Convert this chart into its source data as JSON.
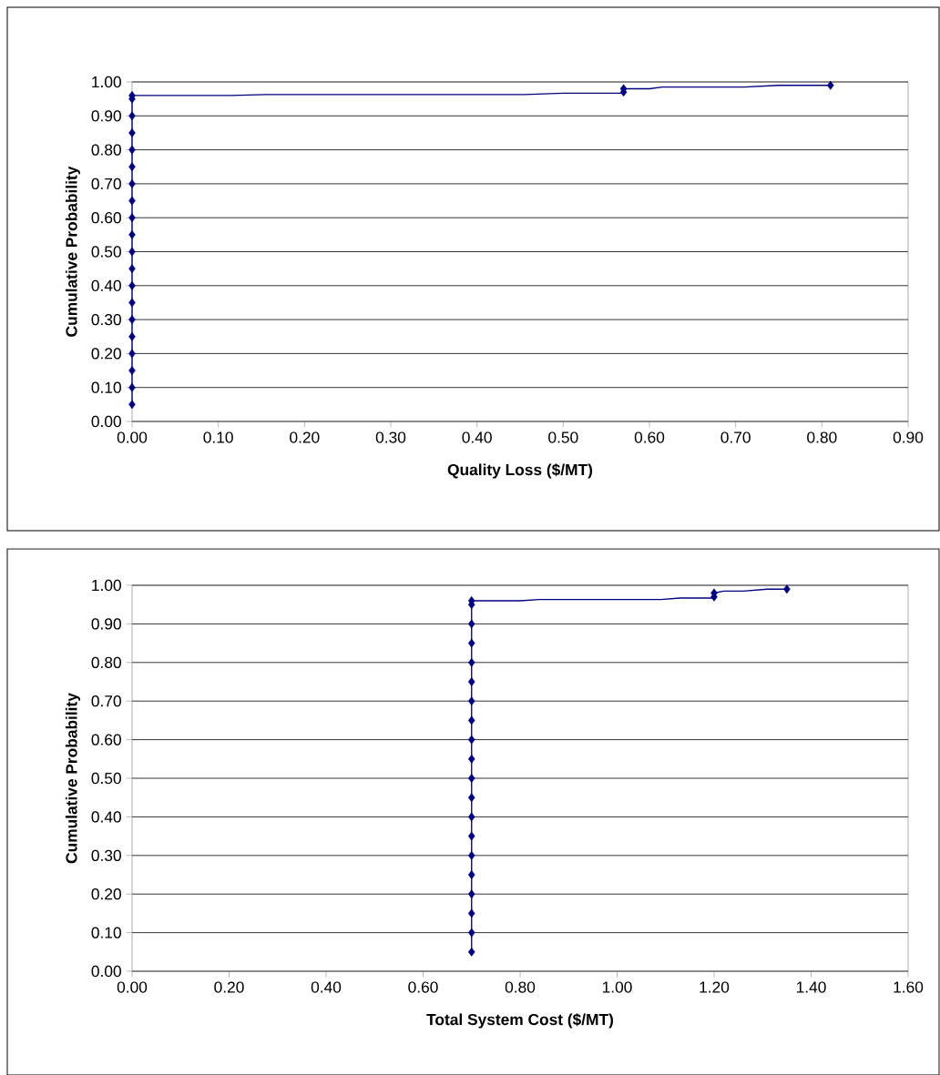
{
  "chart_data": [
    {
      "type": "line",
      "xlabel": "Quality Loss ($/MT)",
      "ylabel": "Cumulative Probability",
      "xlim": [
        0,
        0.9
      ],
      "xticks": [
        {
          "value": 0,
          "label": "0.00"
        },
        {
          "value": 0.1,
          "label": "0.10"
        },
        {
          "value": 0.2,
          "label": "0.20"
        },
        {
          "value": 0.3,
          "label": "0.30"
        },
        {
          "value": 0.4,
          "label": "0.40"
        },
        {
          "value": 0.5,
          "label": "0.50"
        },
        {
          "value": 0.6,
          "label": "0.60"
        },
        {
          "value": 0.7,
          "label": "0.70"
        },
        {
          "value": 0.8,
          "label": "0.80"
        },
        {
          "value": 0.9,
          "label": "0.90"
        }
      ],
      "ylim": [
        0,
        1
      ],
      "yticks": [
        {
          "value": 0,
          "label": "0.00"
        },
        {
          "value": 0.1,
          "label": "0.10"
        },
        {
          "value": 0.2,
          "label": "0.20"
        },
        {
          "value": 0.3,
          "label": "0.30"
        },
        {
          "value": 0.4,
          "label": "0.40"
        },
        {
          "value": 0.5,
          "label": "0.50"
        },
        {
          "value": 0.6,
          "label": "0.60"
        },
        {
          "value": 0.7,
          "label": "0.70"
        },
        {
          "value": 0.8,
          "label": "0.80"
        },
        {
          "value": 0.9,
          "label": "0.90"
        },
        {
          "value": 1,
          "label": "1.00"
        }
      ],
      "grid": "y",
      "series": [
        {
          "marker": "none",
          "color": "#000080",
          "x": [
            0,
            0,
            0.115,
            0.155,
            0.455,
            0.5,
            0.57,
            0.57,
            0.6,
            0.615,
            0.71,
            0.75,
            0.81
          ],
          "values": [
            0.05,
            0.96,
            0.96,
            0.963,
            0.963,
            0.967,
            0.967,
            0.98,
            0.98,
            0.985,
            0.985,
            0.99,
            0.99
          ]
        },
        {
          "type": "scatter",
          "marker": "diamond",
          "color": "#000080",
          "x": [
            0,
            0,
            0,
            0,
            0,
            0,
            0,
            0,
            0,
            0,
            0,
            0,
            0,
            0,
            0,
            0,
            0,
            0,
            0,
            0,
            0.57,
            0.57,
            0.81
          ],
          "values": [
            0.05,
            0.1,
            0.15,
            0.2,
            0.25,
            0.3,
            0.35,
            0.4,
            0.45,
            0.5,
            0.55,
            0.6,
            0.65,
            0.7,
            0.75,
            0.8,
            0.85,
            0.9,
            0.95,
            0.96,
            0.97,
            0.98,
            0.99
          ]
        }
      ]
    },
    {
      "type": "line",
      "xlabel": "Total System Cost ($/MT)",
      "ylabel": "Cumulative Probability",
      "xlim": [
        0,
        1.6
      ],
      "xticks": [
        {
          "value": 0,
          "label": "0.00"
        },
        {
          "value": 0.2,
          "label": "0.20"
        },
        {
          "value": 0.4,
          "label": "0.40"
        },
        {
          "value": 0.6,
          "label": "0.60"
        },
        {
          "value": 0.8,
          "label": "0.80"
        },
        {
          "value": 1,
          "label": "1.00"
        },
        {
          "value": 1.2,
          "label": "1.20"
        },
        {
          "value": 1.4,
          "label": "1.40"
        },
        {
          "value": 1.6,
          "label": "1.60"
        }
      ],
      "ylim": [
        0,
        1
      ],
      "yticks": [
        {
          "value": 0,
          "label": "0.00"
        },
        {
          "value": 0.1,
          "label": "0.10"
        },
        {
          "value": 0.2,
          "label": "0.20"
        },
        {
          "value": 0.3,
          "label": "0.30"
        },
        {
          "value": 0.4,
          "label": "0.40"
        },
        {
          "value": 0.5,
          "label": "0.50"
        },
        {
          "value": 0.6,
          "label": "0.60"
        },
        {
          "value": 0.7,
          "label": "0.70"
        },
        {
          "value": 0.8,
          "label": "0.80"
        },
        {
          "value": 0.9,
          "label": "0.90"
        },
        {
          "value": 1,
          "label": "1.00"
        }
      ],
      "grid": "y",
      "series": [
        {
          "marker": "none",
          "color": "#000080",
          "x": [
            0.7,
            0.7,
            0.8,
            0.84,
            1.09,
            1.13,
            1.2,
            1.2,
            1.22,
            1.26,
            1.31,
            1.35
          ],
          "values": [
            0.05,
            0.96,
            0.96,
            0.963,
            0.963,
            0.967,
            0.967,
            0.98,
            0.985,
            0.985,
            0.99,
            0.99
          ]
        },
        {
          "type": "scatter",
          "marker": "diamond",
          "color": "#000080",
          "x": [
            0.7,
            0.7,
            0.7,
            0.7,
            0.7,
            0.7,
            0.7,
            0.7,
            0.7,
            0.7,
            0.7,
            0.7,
            0.7,
            0.7,
            0.7,
            0.7,
            0.7,
            0.7,
            0.7,
            0.7,
            1.2,
            1.2,
            1.35
          ],
          "values": [
            0.05,
            0.1,
            0.15,
            0.2,
            0.25,
            0.3,
            0.35,
            0.4,
            0.45,
            0.5,
            0.55,
            0.6,
            0.65,
            0.7,
            0.75,
            0.8,
            0.85,
            0.9,
            0.95,
            0.96,
            0.97,
            0.98,
            0.99
          ]
        }
      ]
    }
  ]
}
